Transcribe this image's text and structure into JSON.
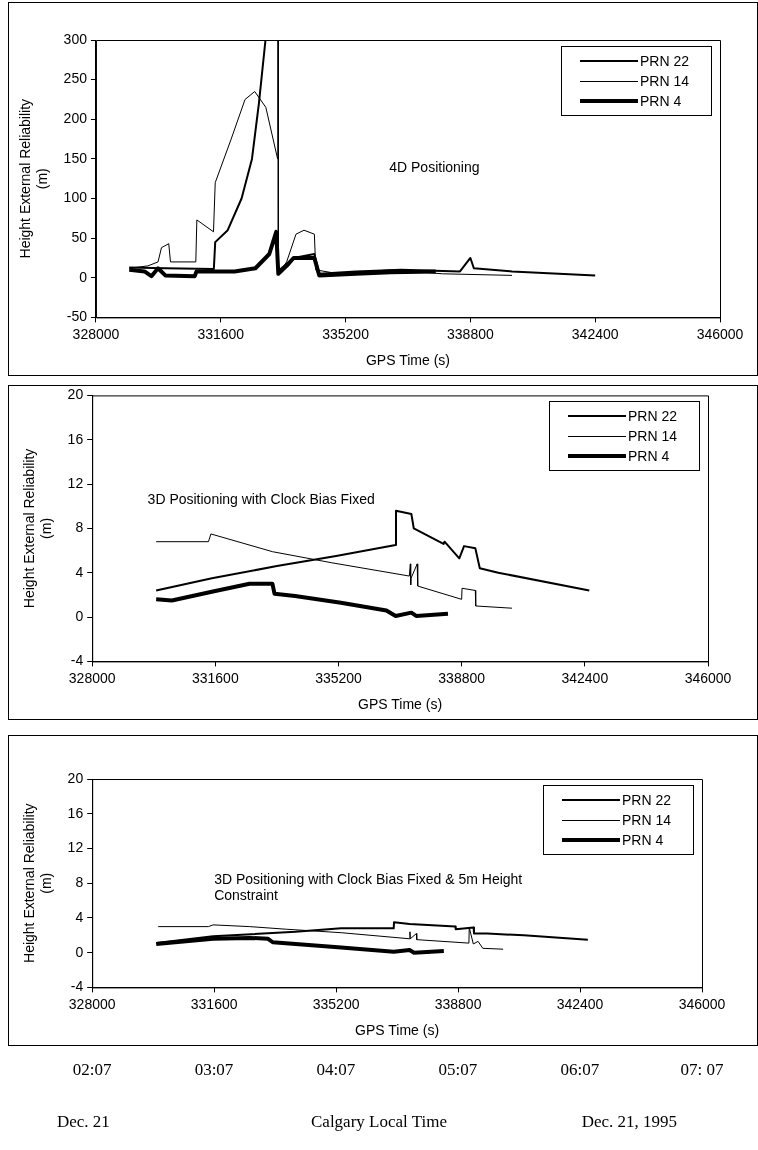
{
  "chart_data": [
    {
      "type": "line",
      "xlabel": "GPS Time (s)",
      "ylabel": "Height External Reliability (m)",
      "xlim": [
        328000,
        346000
      ],
      "xticks": [
        328000,
        331600,
        335200,
        338800,
        342400,
        346000
      ],
      "ylim": [
        -50,
        300
      ],
      "yticks": [
        -50,
        0,
        50,
        100,
        150,
        200,
        250,
        300
      ],
      "legend": "top right",
      "grid": false,
      "annotations": [
        "4D Positioning"
      ],
      "series": [
        {
          "name": "PRN 22",
          "color": "#000000",
          "x": [
            328960,
            330000,
            331400,
            331440,
            331800,
            332200,
            332500,
            332700,
            332890,
            332900,
            333300,
            333700,
            334300,
            334440,
            335500,
            336800,
            338500,
            338800,
            338900,
            340000,
            342400
          ],
          "values": [
            13,
            12,
            11,
            45,
            60,
            100,
            150,
            220,
            300,
            null,
            10,
            25,
            30,
            5,
            8,
            10,
            8,
            25,
            12,
            8,
            3
          ]
        },
        {
          "name": "PRN 14",
          "color": "#000000",
          "x": [
            328960,
            329500,
            329790,
            329890,
            330100,
            330150,
            330880,
            330910,
            331390,
            331440,
            331900,
            332300,
            332580,
            332900,
            333240,
            333250,
            333252,
            333255,
            333260,
            333500,
            333770,
            334000,
            334300,
            334340,
            335000,
            336500,
            338000,
            340000
          ],
          "values": [
            12,
            15,
            20,
            38,
            43,
            20,
            20,
            73,
            58,
            120,
            175,
            225,
            235,
            215,
            150,
            300,
            null,
            300,
            5,
            20,
            55,
            60,
            55,
            10,
            5,
            10,
            5,
            3
          ]
        },
        {
          "name": "PRN 4",
          "color": "#000000",
          "x": [
            328960,
            329400,
            329600,
            329790,
            330000,
            330850,
            330900,
            332000,
            332600,
            333000,
            333200,
            333260,
            333500,
            333700,
            334300,
            334440,
            335500,
            336500,
            337800
          ],
          "values": [
            10,
            8,
            2,
            12,
            3,
            2,
            8,
            8,
            12,
            30,
            58,
            5,
            15,
            25,
            25,
            3,
            5,
            7,
            8
          ]
        }
      ]
    },
    {
      "type": "line",
      "xlabel": "GPS Time (s)",
      "ylabel": "Height External Reliability (m)",
      "xlim": [
        328000,
        346000
      ],
      "xticks": [
        328000,
        331600,
        335200,
        338800,
        342400,
        346000
      ],
      "ylim": [
        -4,
        20
      ],
      "yticks": [
        -4,
        0,
        4,
        8,
        12,
        16,
        20
      ],
      "legend": "top right",
      "grid": false,
      "annotations": [
        "3D Positioning with Clock Bias Fixed"
      ],
      "series": [
        {
          "name": "PRN 22",
          "color": "#000000",
          "x": [
            329870,
            331500,
            333400,
            335130,
            336870,
            336880,
            337330,
            337400,
            338270,
            338300,
            338730,
            338870,
            339200,
            339330,
            339870,
            342530
          ],
          "values": [
            2.4,
            3.5,
            4.6,
            5.5,
            6.5,
            9.6,
            9.3,
            8,
            6.6,
            6.8,
            5.3,
            6.4,
            6.2,
            4.4,
            4,
            2.4
          ]
        },
        {
          "name": "PRN 14",
          "color": "#000000",
          "x": [
            329870,
            331400,
            331470,
            333270,
            335000,
            337270,
            337300,
            337310,
            337320,
            337500,
            337510,
            337520,
            338800,
            338810,
            339200,
            339210,
            340270
          ],
          "values": [
            6.8,
            6.8,
            7.5,
            5.9,
            4.9,
            3.7,
            4.8,
            2.9,
            3.5,
            4.8,
            2.8,
            2.8,
            1.6,
            2.6,
            2.4,
            1,
            0.8
          ]
        },
        {
          "name": "PRN 4",
          "color": "#000000",
          "x": [
            329870,
            330330,
            331530,
            332600,
            333270,
            333330,
            333930,
            335270,
            336600,
            336870,
            337330,
            337470,
            338400
          ],
          "values": [
            1.6,
            1.5,
            2.3,
            3,
            3,
            2.1,
            1.9,
            1.3,
            0.6,
            0.1,
            0.4,
            0.1,
            0.3
          ]
        }
      ]
    },
    {
      "type": "line",
      "xlabel": "GPS Time (s)",
      "ylabel": "Height External Reliability (m)",
      "xlim": [
        328000,
        346000
      ],
      "xticks": [
        328000,
        331600,
        335200,
        338800,
        342400,
        346000
      ],
      "ylim": [
        -4,
        20
      ],
      "yticks": [
        -4,
        0,
        4,
        8,
        12,
        16,
        20
      ],
      "legend": "top right",
      "grid": false,
      "annotations": [
        "3D Positioning with Clock Bias Fixed  & 5m Height Constraint",
        "02:07",
        "03:07",
        "04:07",
        "05:07",
        "06:07",
        "07: 07",
        "Dec. 21",
        "Calgary Local Time",
        "Dec. 21, 1995"
      ],
      "series": [
        {
          "name": "PRN 22",
          "color": "#000000",
          "x": [
            329890,
            331570,
            334000,
            335350,
            336900,
            336910,
            337370,
            338720,
            338730,
            339260,
            339270,
            339660,
            340740,
            342630
          ],
          "values": [
            1.1,
            1.9,
            2.4,
            2.8,
            2.8,
            3.5,
            3.3,
            3,
            2.7,
            2.9,
            2.2,
            2.2,
            2,
            1.5
          ]
        },
        {
          "name": "PRN 14",
          "color": "#000000",
          "x": [
            329950,
            331430,
            331570,
            332650,
            333730,
            335350,
            337370,
            337380,
            337390,
            337570,
            337580,
            339120,
            339130,
            339250,
            339390,
            339530,
            340130
          ],
          "values": [
            3,
            3,
            3.2,
            3,
            2.7,
            2.3,
            1.6,
            2.4,
            1.6,
            2.2,
            1.5,
            1.1,
            2.9,
            1,
            1.3,
            0.5,
            0.4
          ]
        },
        {
          "name": "PRN 4",
          "color": "#000000",
          "x": [
            329890,
            331570,
            332650,
            333190,
            333330,
            335350,
            336900,
            337370,
            337500,
            338380
          ],
          "values": [
            1,
            1.6,
            1.7,
            1.6,
            1.2,
            0.6,
            0.1,
            0.3,
            0,
            0.2
          ]
        }
      ]
    }
  ]
}
